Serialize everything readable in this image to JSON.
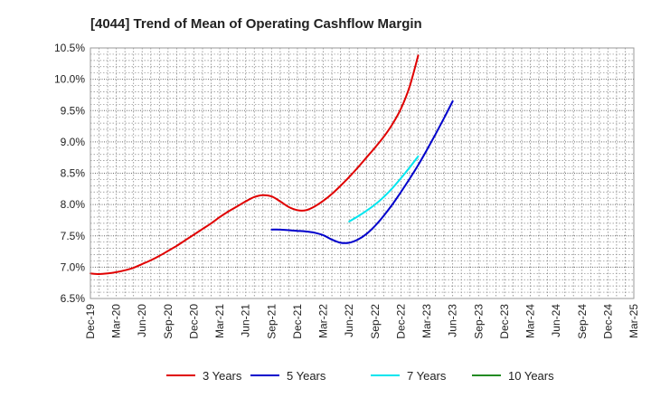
{
  "chart_data": {
    "type": "line",
    "title": "[4044]  Trend of Mean of Operating Cashflow Margin",
    "xlabel": "",
    "ylabel": "",
    "ylim": [
      6.5,
      10.5
    ],
    "grid": true,
    "legend_position": "bottom",
    "x_ticks": [
      "Dec-19",
      "Mar-20",
      "Jun-20",
      "Sep-20",
      "Dec-20",
      "Mar-21",
      "Jun-21",
      "Sep-21",
      "Dec-21",
      "Mar-22",
      "Jun-22",
      "Sep-22",
      "Dec-22",
      "Mar-23",
      "Jun-23",
      "Sep-23",
      "Dec-23",
      "Mar-24",
      "Jun-24",
      "Sep-24",
      "Dec-24",
      "Mar-25"
    ],
    "y_ticks": [
      "6.5%",
      "7.0%",
      "7.5%",
      "8.0%",
      "8.5%",
      "9.0%",
      "9.5%",
      "10.0%",
      "10.5%"
    ],
    "y_tick_values": [
      6.5,
      7.0,
      7.5,
      8.0,
      8.5,
      9.0,
      9.5,
      10.0,
      10.5
    ],
    "series": [
      {
        "name": "3 Years",
        "color": "#e00000",
        "x_start": 0,
        "values": [
          6.9,
          6.89,
          6.9,
          6.92,
          6.95,
          6.99,
          7.05,
          7.11,
          7.18,
          7.26,
          7.34,
          7.43,
          7.52,
          7.61,
          7.7,
          7.8,
          7.89,
          7.97,
          8.05,
          8.12,
          8.15,
          8.13,
          8.05,
          7.96,
          7.91,
          7.91,
          7.97,
          8.06,
          8.17,
          8.3,
          8.44,
          8.59,
          8.75,
          8.91,
          9.08,
          9.28,
          9.53,
          9.88,
          10.38
        ]
      },
      {
        "name": "5 Years",
        "color": "#0000cc",
        "x_start": 21,
        "values": [
          7.6,
          7.6,
          7.59,
          7.58,
          7.57,
          7.55,
          7.51,
          7.44,
          7.39,
          7.39,
          7.44,
          7.53,
          7.66,
          7.82,
          8.0,
          8.2,
          8.41,
          8.63,
          8.87,
          9.12,
          9.38,
          9.65
        ]
      },
      {
        "name": "7 Years",
        "color": "#00e5ee",
        "x_start": 30,
        "values": [
          7.73,
          7.81,
          7.9,
          8.0,
          8.12,
          8.26,
          8.42,
          8.59,
          8.77
        ]
      },
      {
        "name": "10 Years",
        "color": "#228b22",
        "x_start": 0,
        "values": []
      }
    ]
  }
}
